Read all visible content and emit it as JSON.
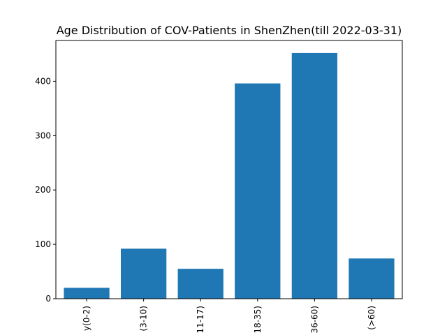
{
  "chart_data": {
    "type": "bar",
    "title": "Age Distribution of COV-Patients in ShenZhen(till 2022-03-31)",
    "xlabel": "",
    "ylabel": "",
    "categories": [
      "y(0-2)",
      "(3-10)",
      "11-17)",
      "18-35)",
      "36-60)",
      "(>60)"
    ],
    "values": [
      20,
      92,
      55,
      396,
      452,
      74
    ],
    "ylim": [
      0,
      475
    ],
    "yticks": [
      0,
      100,
      200,
      300,
      400
    ],
    "bar_color": "#1f77b4",
    "grid": false,
    "legend": "none"
  }
}
